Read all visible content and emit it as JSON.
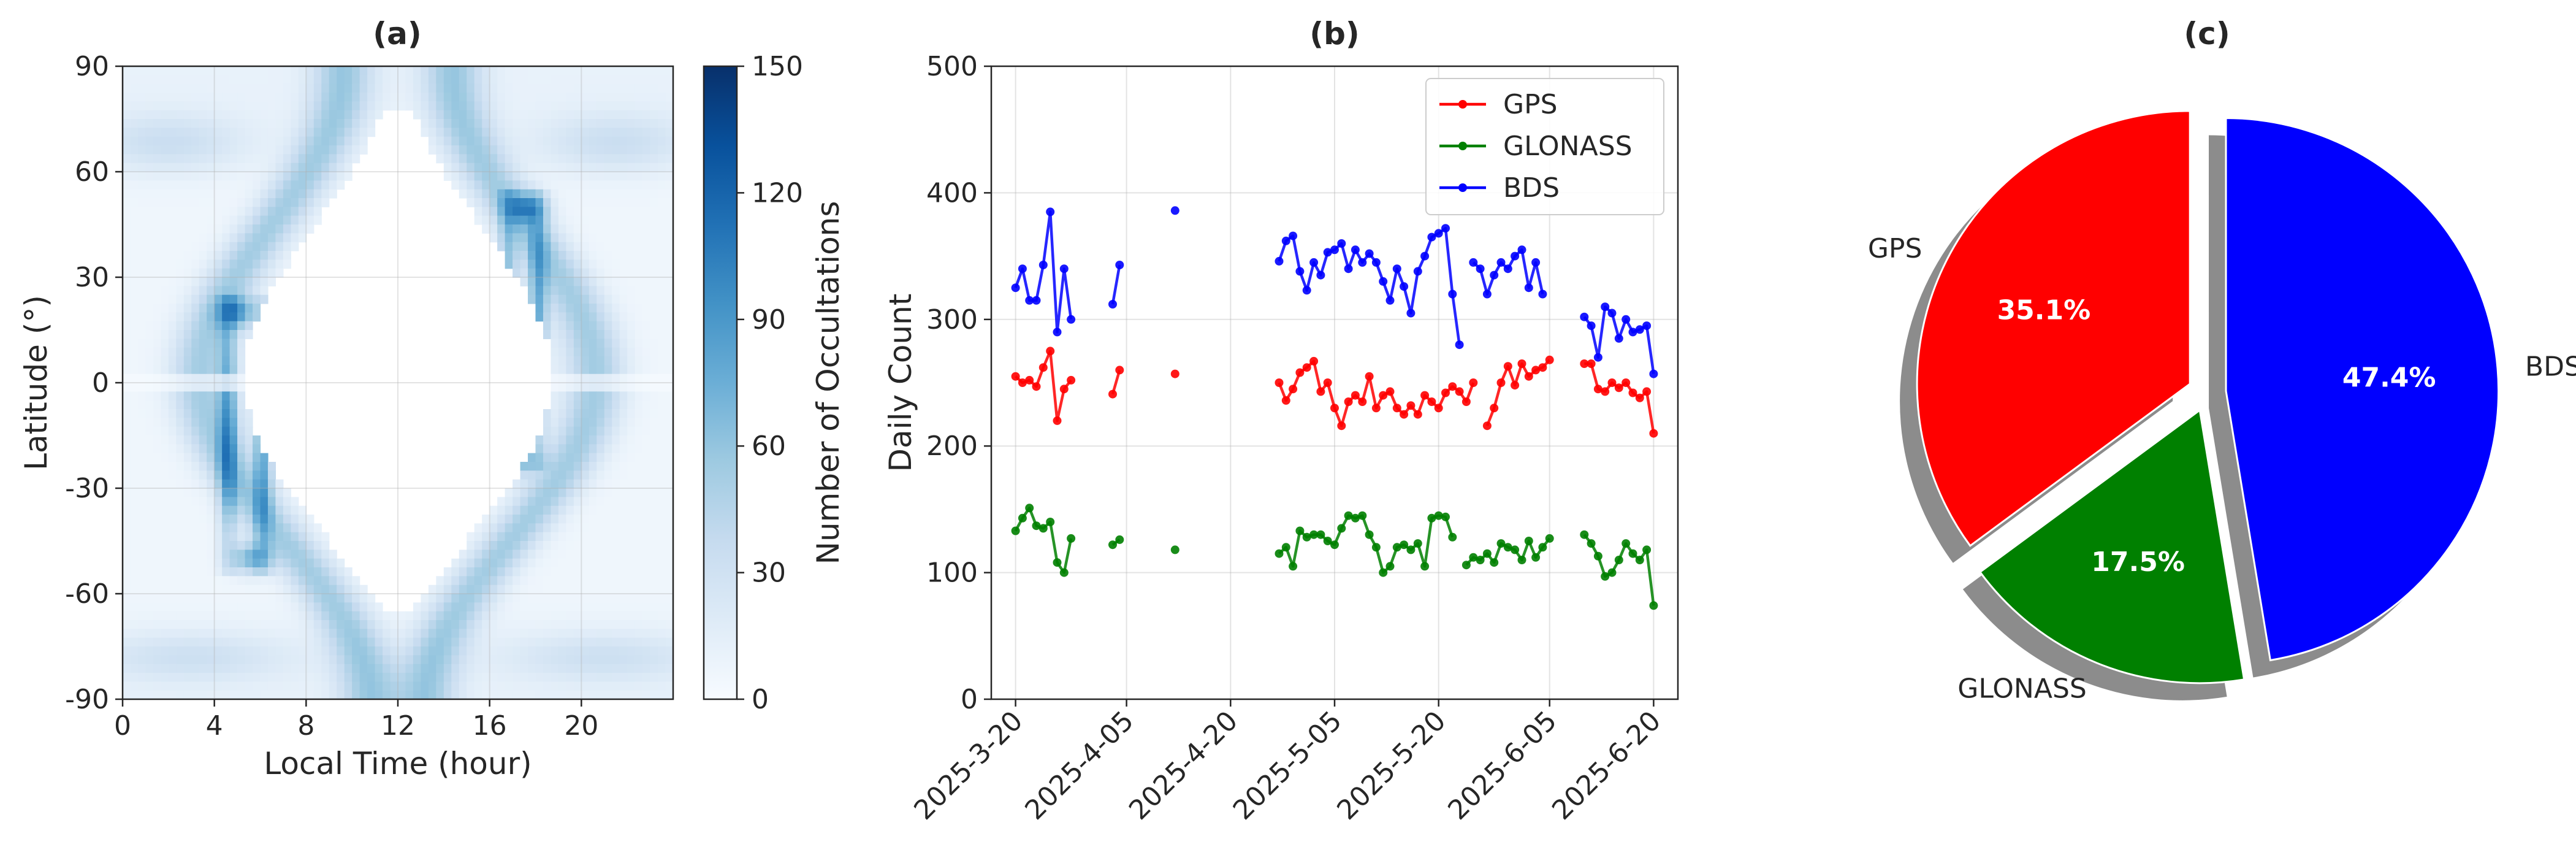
{
  "chart_data": [
    {
      "type": "heatmap",
      "title": "(a)",
      "xlabel": "Local Time (hour)",
      "ylabel": "Latitude (°)",
      "xlim": [
        0,
        24
      ],
      "ylim": [
        -90,
        90
      ],
      "xticks": [
        0,
        4,
        8,
        12,
        16,
        20
      ],
      "yticks": [
        -90,
        -60,
        -30,
        0,
        30,
        60,
        90
      ],
      "colorbar": {
        "label": "Number of Occultations",
        "range": [
          0,
          150
        ],
        "ticks": [
          0,
          30,
          60,
          90,
          120,
          150
        ],
        "colormap": "Blues"
      },
      "grid": true
    },
    {
      "type": "line",
      "title": "(b)",
      "xlabel": "",
      "ylabel": "Daily Count",
      "ylim": [
        0,
        500
      ],
      "yticks": [
        0,
        100,
        200,
        300,
        400,
        500
      ],
      "xtick_labels": [
        "2025-3-20",
        "2025-4-05",
        "2025-4-20",
        "2025-5-05",
        "2025-5-20",
        "2025-6-05",
        "2025-6-20"
      ],
      "grid": true,
      "legend_position": "top-right",
      "x": [
        "2025-03-20",
        "2025-03-21",
        "2025-03-22",
        "2025-03-23",
        "2025-03-24",
        "2025-03-25",
        "2025-03-26",
        "2025-03-27",
        "2025-03-28",
        "2025-03-29",
        "2025-04-03",
        "2025-04-04",
        "2025-04-12",
        "2025-04-27",
        "2025-04-28",
        "2025-04-29",
        "2025-04-30",
        "2025-05-01",
        "2025-05-02",
        "2025-05-03",
        "2025-05-04",
        "2025-05-05",
        "2025-05-06",
        "2025-05-07",
        "2025-05-08",
        "2025-05-09",
        "2025-05-10",
        "2025-05-11",
        "2025-05-12",
        "2025-05-13",
        "2025-05-14",
        "2025-05-15",
        "2025-05-16",
        "2025-05-17",
        "2025-05-18",
        "2025-05-19",
        "2025-05-20",
        "2025-05-21",
        "2025-05-22",
        "2025-05-23",
        "2025-05-24",
        "2025-05-25",
        "2025-05-26",
        "2025-05-27",
        "2025-05-28",
        "2025-05-29",
        "2025-05-30",
        "2025-05-31",
        "2025-06-01",
        "2025-06-02",
        "2025-06-03",
        "2025-06-04",
        "2025-06-05",
        "2025-06-10",
        "2025-06-11",
        "2025-06-12",
        "2025-06-13",
        "2025-06-14",
        "2025-06-15",
        "2025-06-16",
        "2025-06-17",
        "2025-06-18",
        "2025-06-19",
        "2025-06-20"
      ],
      "series": [
        {
          "name": "GPS",
          "color": "#ff0000",
          "values": [
            255,
            250,
            252,
            247,
            262,
            275,
            220,
            245,
            252,
            null,
            241,
            260,
            257,
            250,
            236,
            245,
            258,
            262,
            267,
            243,
            250,
            230,
            216,
            235,
            240,
            235,
            255,
            230,
            240,
            243,
            230,
            225,
            232,
            225,
            240,
            235,
            230,
            242,
            247,
            243,
            235,
            250,
            null,
            216,
            230,
            250,
            263,
            248,
            265,
            255,
            260,
            262,
            268,
            265,
            265,
            245,
            243,
            250,
            246,
            250,
            242,
            238,
            243,
            210
          ]
        },
        {
          "name": "GLONASS",
          "color": "#008000",
          "values": [
            133,
            143,
            151,
            137,
            135,
            140,
            108,
            100,
            127,
            null,
            122,
            126,
            118,
            115,
            120,
            105,
            133,
            128,
            130,
            130,
            125,
            122,
            135,
            145,
            143,
            145,
            130,
            120,
            100,
            105,
            120,
            122,
            118,
            123,
            105,
            143,
            145,
            144,
            128,
            null,
            106,
            112,
            110,
            115,
            108,
            123,
            120,
            118,
            110,
            125,
            112,
            120,
            127,
            130,
            123,
            113,
            97,
            100,
            110,
            123,
            115,
            110,
            118,
            74
          ]
        },
        {
          "name": "BDS",
          "color": "#0000ff",
          "values": [
            325,
            340,
            315,
            315,
            343,
            385,
            290,
            340,
            300,
            null,
            312,
            343,
            386,
            346,
            362,
            366,
            338,
            323,
            345,
            335,
            353,
            355,
            360,
            340,
            355,
            345,
            352,
            345,
            330,
            315,
            340,
            326,
            305,
            338,
            350,
            365,
            368,
            372,
            320,
            280,
            null,
            345,
            340,
            320,
            335,
            345,
            340,
            350,
            355,
            325,
            345,
            320,
            null,
            302,
            295,
            270,
            310,
            305,
            285,
            300,
            290,
            292,
            295,
            257
          ]
        }
      ]
    },
    {
      "type": "pie",
      "title": "(c)",
      "labels": [
        "GPS",
        "GLONASS",
        "BDS"
      ],
      "values": [
        35.1,
        17.5,
        47.4
      ],
      "value_labels": [
        "35.1%",
        "17.5%",
        "47.4%"
      ],
      "colors": [
        "#ff0000",
        "#008000",
        "#0000ff"
      ],
      "exploded": true,
      "shadow": true
    }
  ]
}
